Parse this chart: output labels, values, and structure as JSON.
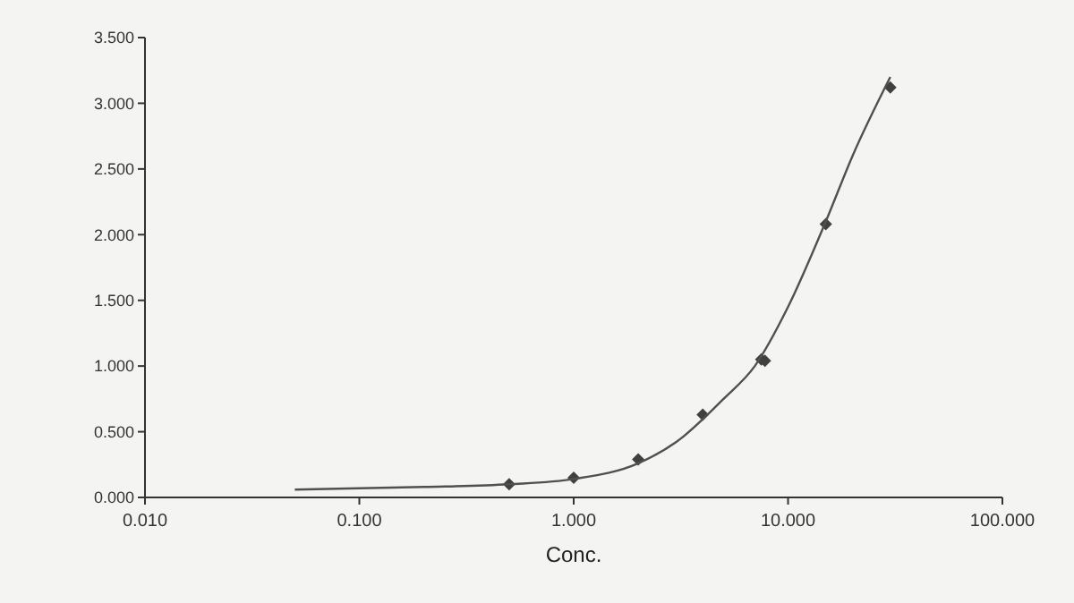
{
  "chart_data": {
    "type": "scatter",
    "xlabel": "Conc.",
    "log": "x",
    "xlim": [
      0.01,
      100
    ],
    "xticks": [
      {
        "value": 0.01,
        "label": "0.010"
      },
      {
        "value": 0.1,
        "label": "0.100"
      },
      {
        "value": 1,
        "label": "1.000"
      },
      {
        "value": 10,
        "label": "10.000"
      },
      {
        "value": 100,
        "label": "100.000"
      }
    ],
    "ylim": [
      0,
      3.5
    ],
    "yticks": [
      {
        "value": 0,
        "label": "0.000"
      },
      {
        "value": 0.5,
        "label": "0.500"
      },
      {
        "value": 1,
        "label": "1.000"
      },
      {
        "value": 1.5,
        "label": "1.500"
      },
      {
        "value": 2,
        "label": "2.000"
      },
      {
        "value": 2.5,
        "label": "2.500"
      },
      {
        "value": 3,
        "label": "3.000"
      },
      {
        "value": 3.5,
        "label": "3.500"
      }
    ],
    "grid": false,
    "series": [
      {
        "color": "#404040",
        "marker": "diamond",
        "x": [
          0.5,
          1,
          2,
          4,
          7.5,
          7.8,
          15,
          30
        ],
        "values": [
          0.1,
          0.15,
          0.29,
          0.63,
          1.05,
          1.04,
          2.08,
          3.12
        ]
      },
      {
        "type": "line",
        "color": "#505050",
        "marker": "none",
        "line_style": "solid",
        "x": [
          0.05,
          0.1,
          0.2,
          0.5,
          1,
          2,
          3,
          5,
          7,
          10,
          15,
          20,
          30
        ],
        "values": [
          0.06,
          0.07,
          0.08,
          0.1,
          0.14,
          0.26,
          0.42,
          0.75,
          1.0,
          1.45,
          2.1,
          2.6,
          3.2
        ]
      }
    ]
  }
}
